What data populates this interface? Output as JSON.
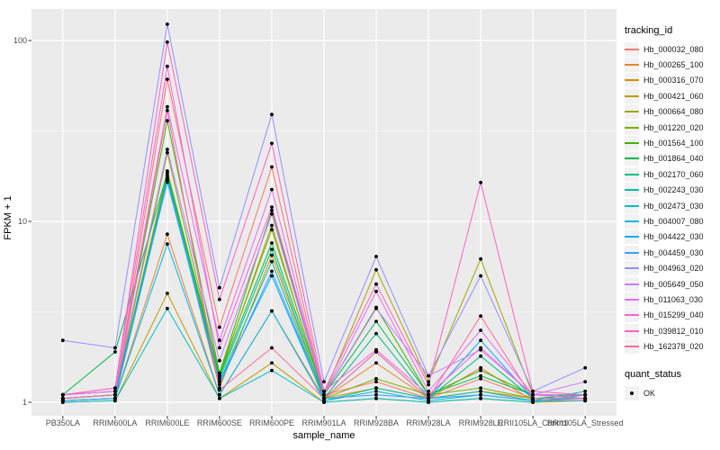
{
  "figure": {
    "y_axis_title": "FPKM + 1",
    "x_axis_title": "sample_name"
  },
  "chart_data": {
    "type": "line",
    "title": "",
    "xlabel": "sample_name",
    "ylabel": "FPKM + 1",
    "y_scale": "log10",
    "y_ticks": [
      1,
      10,
      100
    ],
    "y_minor_gridlines": [
      3.162,
      31.62
    ],
    "ylim": [
      0.85,
      150
    ],
    "grid": true,
    "panel_background": "#EBEBEB",
    "gridline_color": "#FFFFFF",
    "point_color": "#000000",
    "axis_text_color": "#4d4d4d",
    "legend_position": "right",
    "legend_series_title": "tracking_id",
    "legend_quant_title": "quant_status",
    "quant_status_label": "OK",
    "categories": [
      "PB350LA",
      "RRIM600LA",
      "RRIM600LE",
      "RRIM600SE",
      "RRIM600PE",
      "RRIM901LA",
      "RRIM928BA",
      "RRIM928LA",
      "RRIM928LE",
      "RRII105LA_Control",
      "RRII105LA_Stressed"
    ],
    "series": [
      {
        "name": "Hb_000032_080",
        "color": "#F8766D",
        "values": [
          1.05,
          1.1,
          61.0,
          2.6,
          20.0,
          1.1,
          1.3,
          1.05,
          1.35,
          1.05,
          1.05
        ]
      },
      {
        "name": "Hb_000265_100",
        "color": "#EA8331",
        "values": [
          1.02,
          1.05,
          8.5,
          1.1,
          3.2,
          1.05,
          1.65,
          1.05,
          1.55,
          1.02,
          1.02
        ]
      },
      {
        "name": "Hb_000316_070",
        "color": "#D89000",
        "values": [
          1.02,
          1.05,
          17.5,
          1.2,
          6.5,
          1.05,
          1.2,
          1.05,
          1.15,
          1.05,
          1.05
        ]
      },
      {
        "name": "Hb_000421_060",
        "color": "#C09B00",
        "values": [
          1.0,
          1.02,
          4.0,
          1.05,
          1.65,
          1.0,
          1.05,
          1.0,
          1.05,
          1.0,
          1.02
        ]
      },
      {
        "name": "Hb_000664_080",
        "color": "#A3A500",
        "values": [
          1.05,
          1.1,
          19.0,
          1.45,
          9.0,
          1.1,
          5.4,
          1.3,
          6.2,
          1.1,
          1.05
        ]
      },
      {
        "name": "Hb_001220_020",
        "color": "#7CAE00",
        "values": [
          1.05,
          1.1,
          24.0,
          1.4,
          9.5,
          1.05,
          1.35,
          1.1,
          1.2,
          1.05,
          1.05
        ]
      },
      {
        "name": "Hb_001564_100",
        "color": "#39B600",
        "values": [
          1.1,
          1.15,
          36.0,
          1.45,
          11.5,
          1.1,
          3.35,
          1.1,
          1.5,
          1.1,
          1.1
        ]
      },
      {
        "name": "Hb_001864_040",
        "color": "#00BB4E",
        "values": [
          1.1,
          1.9,
          18.5,
          1.4,
          7.6,
          1.1,
          2.8,
          1.1,
          1.4,
          1.1,
          1.1
        ]
      },
      {
        "name": "Hb_002170_060",
        "color": "#00BF7D",
        "values": [
          1.05,
          1.1,
          18.0,
          1.35,
          7.0,
          1.05,
          2.4,
          1.05,
          1.8,
          1.05,
          1.1
        ]
      },
      {
        "name": "Hb_002243_030",
        "color": "#00C1A3",
        "values": [
          1.02,
          1.05,
          17.0,
          1.3,
          6.0,
          1.02,
          1.2,
          1.05,
          1.15,
          1.02,
          1.15
        ]
      },
      {
        "name": "Hb_002473_030",
        "color": "#00BFC4",
        "values": [
          1.0,
          1.02,
          3.3,
          1.05,
          1.5,
          1.0,
          1.05,
          1.0,
          1.05,
          1.0,
          1.1
        ]
      },
      {
        "name": "Hb_004007_080",
        "color": "#00B8E7",
        "values": [
          1.02,
          1.05,
          7.5,
          1.1,
          3.2,
          1.02,
          1.15,
          1.02,
          1.1,
          1.02,
          1.05
        ]
      },
      {
        "name": "Hb_004422_030",
        "color": "#00ACFC",
        "values": [
          1.05,
          1.1,
          16.5,
          1.3,
          5.0,
          1.05,
          1.9,
          1.05,
          2.2,
          1.05,
          1.05
        ]
      },
      {
        "name": "Hb_004459_030",
        "color": "#35A2FF",
        "values": [
          1.02,
          1.05,
          17.0,
          1.25,
          5.3,
          1.05,
          1.1,
          1.05,
          1.1,
          1.02,
          1.02
        ]
      },
      {
        "name": "Hb_004963_020",
        "color": "#9590FF",
        "values": [
          2.2,
          2.0,
          123.0,
          4.3,
          39.0,
          1.3,
          6.4,
          1.4,
          5.0,
          1.15,
          1.55
        ]
      },
      {
        "name": "Hb_005649_050",
        "color": "#C77CFF",
        "values": [
          1.1,
          1.15,
          25.0,
          1.7,
          11.0,
          1.1,
          3.3,
          1.4,
          1.95,
          1.1,
          1.3
        ]
      },
      {
        "name": "Hb_011063_030",
        "color": "#E76BF3",
        "values": [
          1.1,
          1.15,
          43.0,
          2.2,
          15.0,
          1.1,
          4.1,
          1.15,
          2.5,
          1.1,
          1.1
        ]
      },
      {
        "name": "Hb_015299_040",
        "color": "#FA62DB",
        "values": [
          1.1,
          1.2,
          72.0,
          2.0,
          12.0,
          1.15,
          1.95,
          1.1,
          2.0,
          1.1,
          1.05
        ]
      },
      {
        "name": "Hb_039812_010",
        "color": "#FF62BC",
        "values": [
          1.1,
          1.2,
          98.0,
          3.7,
          27.0,
          1.15,
          4.5,
          1.25,
          16.4,
          1.15,
          1.1
        ]
      },
      {
        "name": "Hb_162378_020",
        "color": "#FF6A98",
        "values": [
          1.05,
          1.1,
          41.0,
          1.17,
          2.0,
          1.05,
          1.9,
          1.05,
          3.0,
          1.05,
          1.05
        ]
      }
    ]
  }
}
